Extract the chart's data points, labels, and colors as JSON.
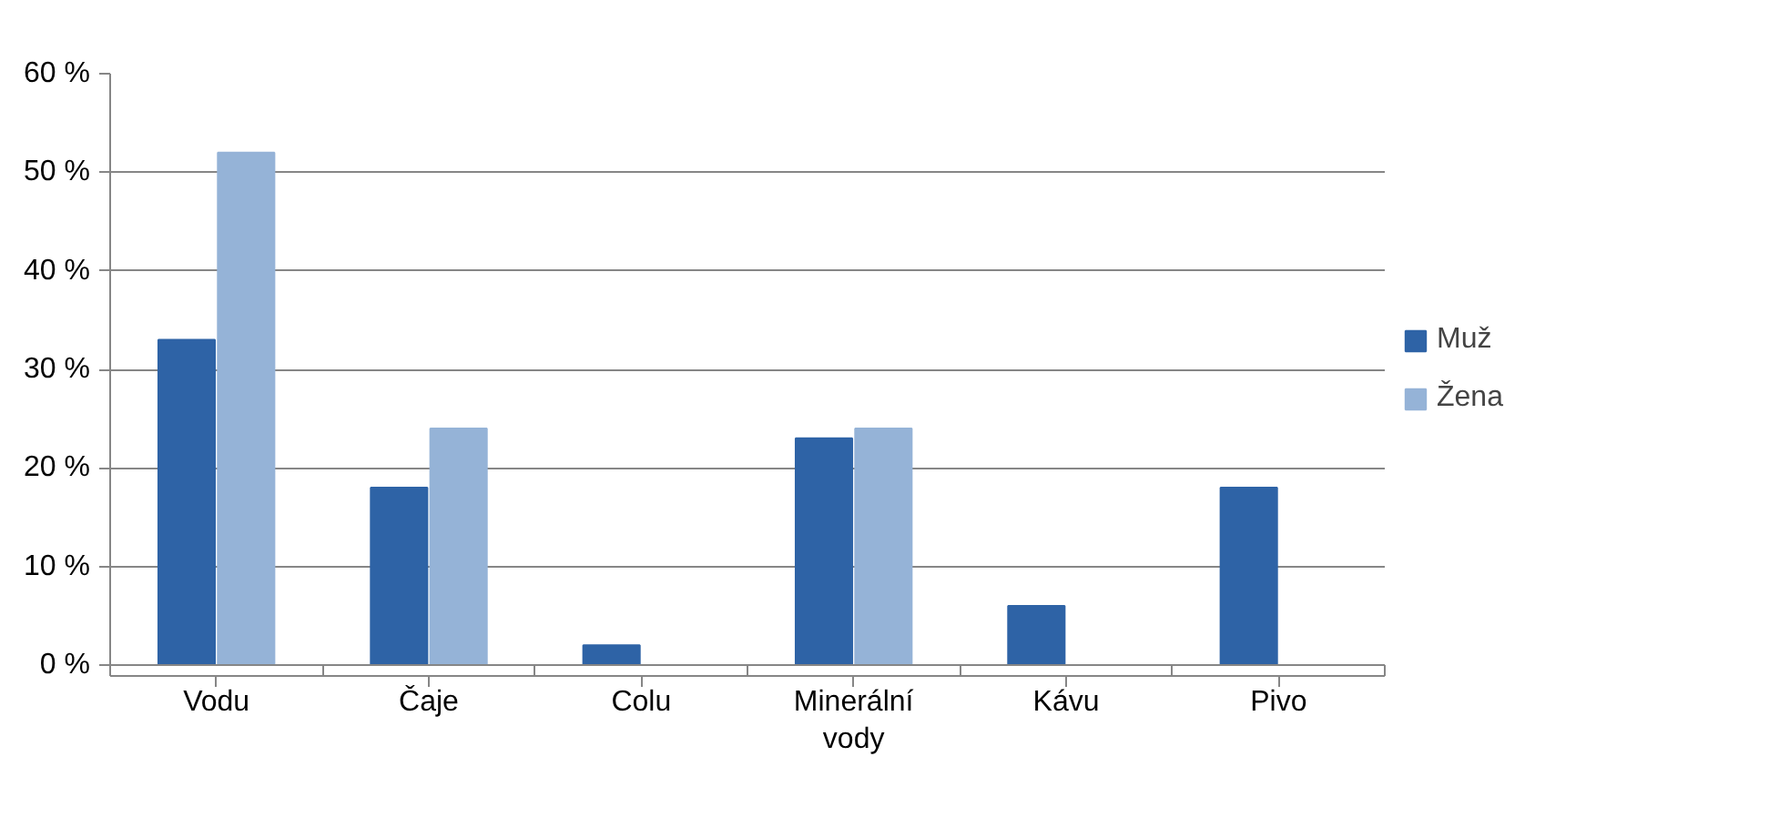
{
  "chart_data": {
    "type": "bar",
    "categories": [
      "Vodu",
      "Čaje",
      "Colu",
      "Minerální vody",
      "Kávu",
      "Pivo"
    ],
    "series": [
      {
        "name": "Muž",
        "color": "#2e63a6",
        "values": [
          33,
          18,
          2,
          23,
          6,
          18
        ]
      },
      {
        "name": "Žena",
        "color": "#95b3d7",
        "values": [
          52,
          24,
          0,
          24,
          0,
          0
        ]
      }
    ],
    "ylim": [
      0,
      60
    ],
    "yticks": [
      {
        "value": 0,
        "label": "0 %"
      },
      {
        "value": 10,
        "label": "10 %"
      },
      {
        "value": 20,
        "label": "20 %"
      },
      {
        "value": 30,
        "label": "30 %"
      },
      {
        "value": 40,
        "label": "40 %"
      },
      {
        "value": 50,
        "label": "50 %"
      },
      {
        "value": 60,
        "label": "60 %"
      }
    ],
    "grid": "y",
    "legend": "right"
  }
}
